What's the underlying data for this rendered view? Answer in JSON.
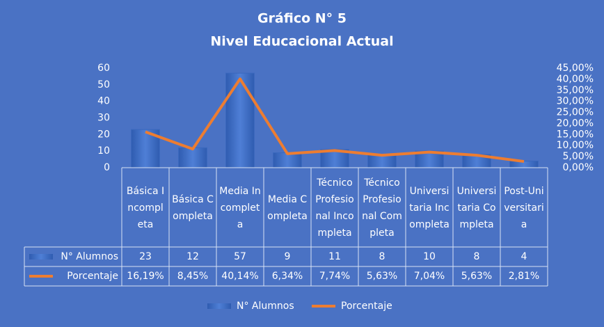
{
  "chart_data": {
    "type": "bar_line_table",
    "title": "Gráfico N° 5",
    "subtitle": "Nivel Educacional Actual",
    "categories": [
      "Básica Incompleta",
      "Básica Completa",
      "Media Incompleta",
      "Media Completa",
      "Técnico Profesional Incompleta",
      "Técnico Profesional Completa",
      "Universitaria Incompleta",
      "Universitaria Completa",
      "Post-Universitaria"
    ],
    "series": [
      {
        "name": "N° Alumnos",
        "type": "bar",
        "color": "#3a68bd",
        "values": [
          23,
          12,
          57,
          9,
          11,
          8,
          10,
          8,
          4
        ]
      },
      {
        "name": "Porcentaje",
        "type": "line",
        "axis": "y2",
        "color": "#ed7d31",
        "values": [
          16.19,
          8.45,
          40.14,
          6.34,
          7.74,
          5.63,
          7.04,
          5.63,
          2.81
        ],
        "value_labels": [
          "16,19%",
          "8,45%",
          "40,14%",
          "6,34%",
          "7,74%",
          "5,63%",
          "7,04%",
          "5,63%",
          "2,81%"
        ]
      }
    ],
    "ylim": [
      0,
      60
    ],
    "yticks": [
      0,
      10,
      20,
      30,
      40,
      50,
      60
    ],
    "y2lim": [
      0,
      45
    ],
    "y2ticks": [
      {
        "value": 0,
        "label": "0,00%"
      },
      {
        "value": 5,
        "label": "5,00%"
      },
      {
        "value": 10,
        "label": "10,00%"
      },
      {
        "value": 15,
        "label": "15,00%"
      },
      {
        "value": 20,
        "label": "20,00%"
      },
      {
        "value": 25,
        "label": "25,00%"
      },
      {
        "value": 30,
        "label": "30,00%"
      },
      {
        "value": 35,
        "label": "35,00%"
      },
      {
        "value": 40,
        "label": "40,00%"
      },
      {
        "value": 45,
        "label": "45,00%"
      }
    ],
    "grid": false,
    "legend": "bottom"
  }
}
